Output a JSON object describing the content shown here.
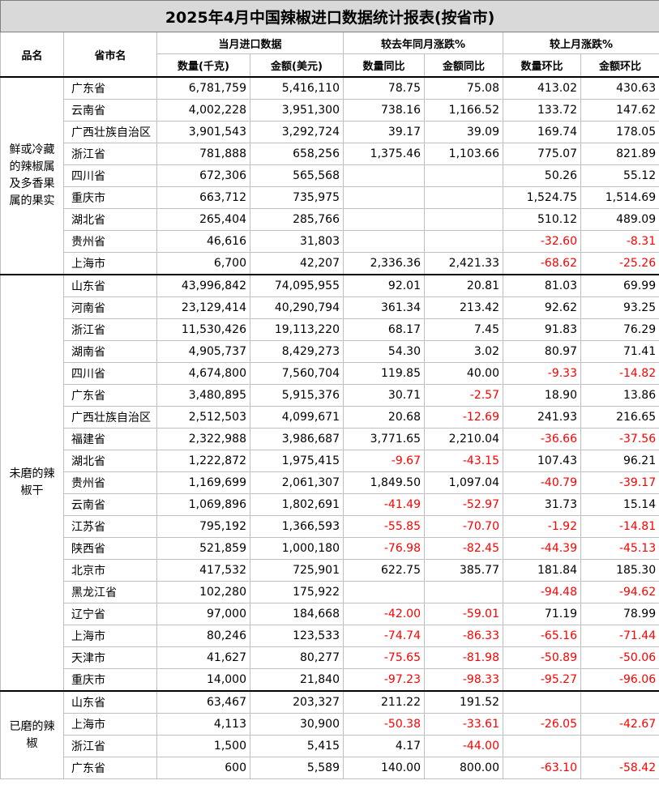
{
  "title": "2025年4月中国辣椒进口数据统计报表(按省市)",
  "headers": {
    "product": "品名",
    "province": "省市名",
    "group_current": "当月进口数据",
    "group_yoy": "较去年同月涨跌%",
    "group_mom": "较上月涨跌%",
    "qty": "数量(千克)",
    "amount": "金额(美元)",
    "qty_yoy": "数量同比",
    "amount_yoy": "金额同比",
    "qty_mom": "数量环比",
    "amount_mom": "金额环比"
  },
  "groups": [
    {
      "product": "鲜或冷藏的辣椒属及多香果属的果实",
      "rows": [
        [
          "广东省",
          "6,781,759",
          "5,416,110",
          "78.75",
          "75.08",
          "413.02",
          "430.63"
        ],
        [
          "云南省",
          "4,002,228",
          "3,951,300",
          "738.16",
          "1,166.52",
          "133.72",
          "147.62"
        ],
        [
          "广西壮族自治区",
          "3,901,543",
          "3,292,724",
          "39.17",
          "39.09",
          "169.74",
          "178.05"
        ],
        [
          "浙江省",
          "781,888",
          "658,256",
          "1,375.46",
          "1,103.66",
          "775.07",
          "821.89"
        ],
        [
          "四川省",
          "672,306",
          "565,568",
          "",
          "",
          "50.26",
          "55.12"
        ],
        [
          "重庆市",
          "663,712",
          "735,975",
          "",
          "",
          "1,524.75",
          "1,514.69"
        ],
        [
          "湖北省",
          "265,404",
          "285,766",
          "",
          "",
          "510.12",
          "489.09"
        ],
        [
          "贵州省",
          "46,616",
          "31,803",
          "",
          "",
          "-32.60",
          "-8.31"
        ],
        [
          "上海市",
          "6,700",
          "42,207",
          "2,336.36",
          "2,421.33",
          "-68.62",
          "-25.26"
        ]
      ]
    },
    {
      "product": "未磨的辣椒干",
      "rows": [
        [
          "山东省",
          "43,996,842",
          "74,095,955",
          "92.01",
          "20.81",
          "81.03",
          "69.99"
        ],
        [
          "河南省",
          "23,129,414",
          "40,290,794",
          "361.34",
          "213.42",
          "92.62",
          "93.25"
        ],
        [
          "浙江省",
          "11,530,426",
          "19,113,220",
          "68.17",
          "7.45",
          "91.83",
          "76.29"
        ],
        [
          "湖南省",
          "4,905,737",
          "8,429,273",
          "54.30",
          "3.02",
          "80.97",
          "71.41"
        ],
        [
          "四川省",
          "4,674,800",
          "7,560,704",
          "119.85",
          "40.00",
          "-9.33",
          "-14.82"
        ],
        [
          "广东省",
          "3,480,895",
          "5,915,376",
          "30.71",
          "-2.57",
          "18.90",
          "13.86"
        ],
        [
          "广西壮族自治区",
          "2,512,503",
          "4,099,671",
          "20.68",
          "-12.69",
          "241.93",
          "216.65"
        ],
        [
          "福建省",
          "2,322,988",
          "3,986,687",
          "3,771.65",
          "2,210.04",
          "-36.66",
          "-37.56"
        ],
        [
          "湖北省",
          "1,222,872",
          "1,975,415",
          "-9.67",
          "-43.15",
          "107.43",
          "96.21"
        ],
        [
          "贵州省",
          "1,169,699",
          "2,061,307",
          "1,849.50",
          "1,097.04",
          "-40.79",
          "-39.17"
        ],
        [
          "云南省",
          "1,069,896",
          "1,802,691",
          "-41.49",
          "-52.97",
          "31.73",
          "15.14"
        ],
        [
          "江苏省",
          "795,192",
          "1,366,593",
          "-55.85",
          "-70.70",
          "-1.92",
          "-14.81"
        ],
        [
          "陕西省",
          "521,859",
          "1,000,180",
          "-76.98",
          "-82.45",
          "-44.39",
          "-45.13"
        ],
        [
          "北京市",
          "417,532",
          "725,901",
          "622.75",
          "385.77",
          "181.84",
          "185.30"
        ],
        [
          "黑龙江省",
          "102,280",
          "175,922",
          "",
          "",
          "-94.48",
          "-94.62"
        ],
        [
          "辽宁省",
          "97,000",
          "184,668",
          "-42.00",
          "-59.01",
          "71.19",
          "78.99"
        ],
        [
          "上海市",
          "80,246",
          "123,533",
          "-74.74",
          "-86.33",
          "-65.16",
          "-71.44"
        ],
        [
          "天津市",
          "41,627",
          "80,277",
          "-75.65",
          "-81.98",
          "-50.89",
          "-50.06"
        ],
        [
          "重庆市",
          "14,000",
          "21,840",
          "-97.23",
          "-98.33",
          "-95.27",
          "-96.06"
        ]
      ]
    },
    {
      "product": "已磨的辣椒",
      "rows": [
        [
          "山东省",
          "63,467",
          "203,327",
          "211.22",
          "191.52",
          "",
          ""
        ],
        [
          "上海市",
          "4,113",
          "30,900",
          "-50.38",
          "-33.61",
          "-26.05",
          "-42.67"
        ],
        [
          "浙江省",
          "1,500",
          "5,415",
          "4.17",
          "-44.00",
          "",
          ""
        ],
        [
          "广东省",
          "600",
          "5,589",
          "140.00",
          "800.00",
          "-63.10",
          "-58.42"
        ]
      ]
    }
  ]
}
